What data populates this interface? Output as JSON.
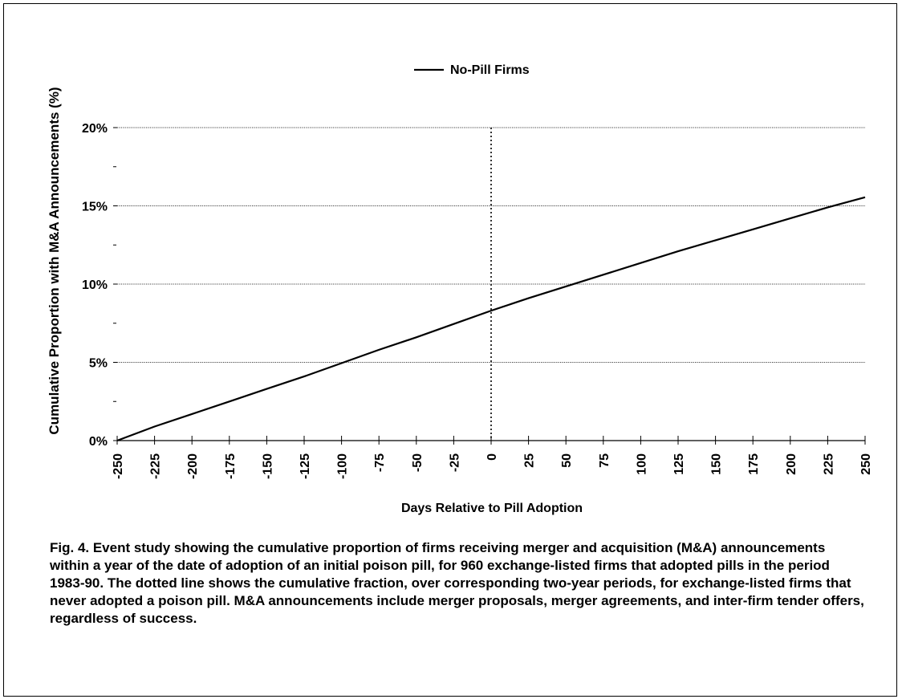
{
  "chart_data": {
    "type": "line",
    "title": "",
    "xlabel": "Days Relative to Pill Adoption",
    "ylabel": "Cumulative Proportion with M&A Announcements (%)",
    "xlim": [
      -250,
      250
    ],
    "ylim": [
      0,
      20
    ],
    "x_ticks": [
      -250,
      -225,
      -200,
      -175,
      -150,
      -125,
      -100,
      -75,
      -50,
      -25,
      0,
      25,
      50,
      75,
      100,
      125,
      150,
      175,
      200,
      225,
      250
    ],
    "y_ticks": [
      0,
      5,
      10,
      15,
      20
    ],
    "y_tick_labels": [
      "0%",
      "5%",
      "10%",
      "15%",
      "20%"
    ],
    "grid": "horizontal",
    "legend_position": "top-center",
    "vertical_marker": {
      "x": 0,
      "style": "dotted"
    },
    "series": [
      {
        "name": "No-Pill Firms",
        "color": "#000000",
        "points": [
          {
            "x": -250,
            "y": 0.0
          },
          {
            "x": -225,
            "y": 0.9
          },
          {
            "x": -200,
            "y": 1.7
          },
          {
            "x": -175,
            "y": 2.5
          },
          {
            "x": -150,
            "y": 3.3
          },
          {
            "x": -125,
            "y": 4.1
          },
          {
            "x": -100,
            "y": 4.95
          },
          {
            "x": -75,
            "y": 5.8
          },
          {
            "x": -50,
            "y": 6.6
          },
          {
            "x": -25,
            "y": 7.45
          },
          {
            "x": 0,
            "y": 8.3
          },
          {
            "x": 25,
            "y": 9.1
          },
          {
            "x": 50,
            "y": 9.85
          },
          {
            "x": 75,
            "y": 10.6
          },
          {
            "x": 100,
            "y": 11.35
          },
          {
            "x": 125,
            "y": 12.1
          },
          {
            "x": 150,
            "y": 12.8
          },
          {
            "x": 175,
            "y": 13.5
          },
          {
            "x": 200,
            "y": 14.2
          },
          {
            "x": 225,
            "y": 14.9
          },
          {
            "x": 250,
            "y": 15.55
          }
        ]
      }
    ]
  },
  "caption": "Fig. 4.   Event study showing the cumulative proportion of firms receiving merger and acquisition (M&A) announcements within a year of the date of adoption of an initial poison pill, for 960 exchange-listed firms that adopted pills in the period 1983-90. The dotted line shows the cumulative fraction, over corresponding two-year periods, for exchange-listed firms that never adopted a poison pill.  M&A announcements include merger proposals, merger agreements, and inter-firm tender offers, regardless of success."
}
